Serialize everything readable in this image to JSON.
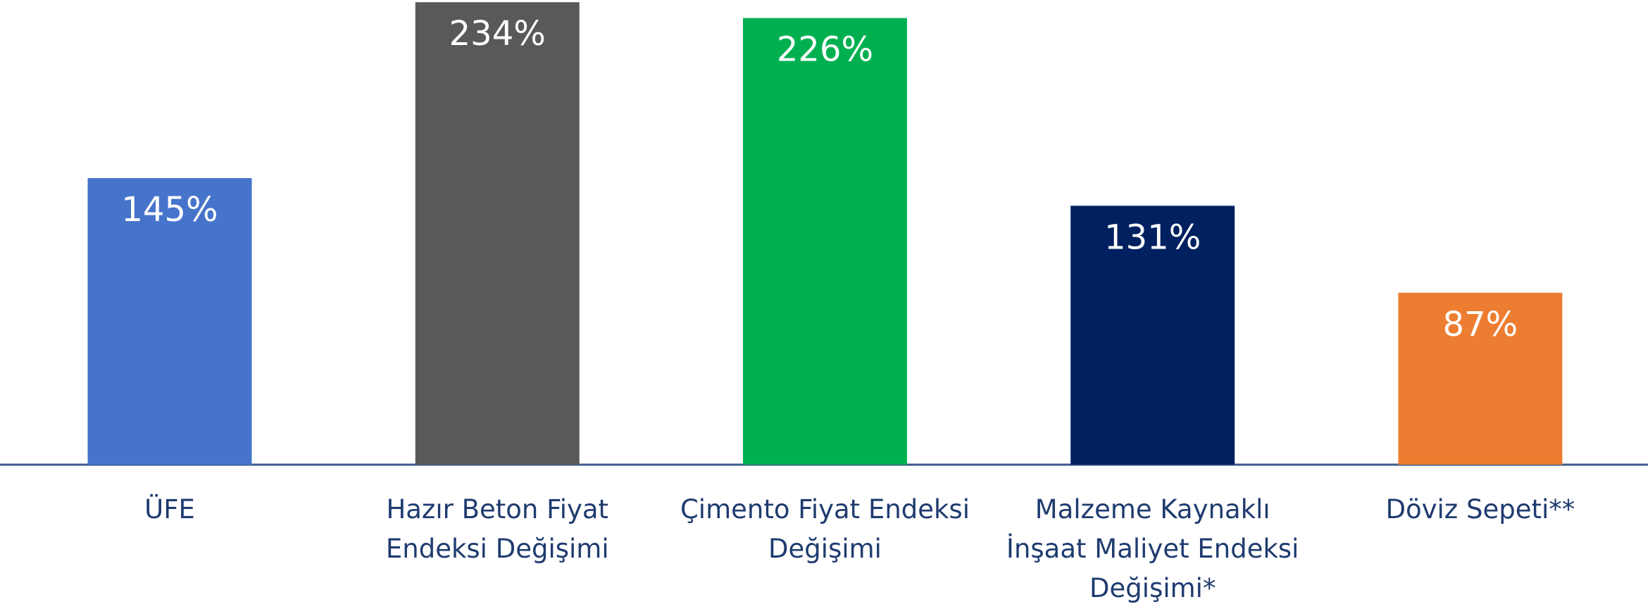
{
  "chart_data": {
    "type": "bar",
    "categories": [
      "ÜFE",
      "Hazır Beton Fiyat Endeksi Değişimi",
      "Çimento Fiyat Endeksi Değişimi",
      "Malzeme Kaynaklı İnşaat Maliyet Endeksi Değişimi*",
      "Döviz Sepeti**"
    ],
    "values": [
      145,
      234,
      226,
      131,
      87
    ],
    "value_labels": [
      "145%",
      "234%",
      "226%",
      "131%",
      "87%"
    ],
    "colors": [
      "#4674cb",
      "#595959",
      "#00b050",
      "#002060",
      "#ed7d31"
    ]
  }
}
